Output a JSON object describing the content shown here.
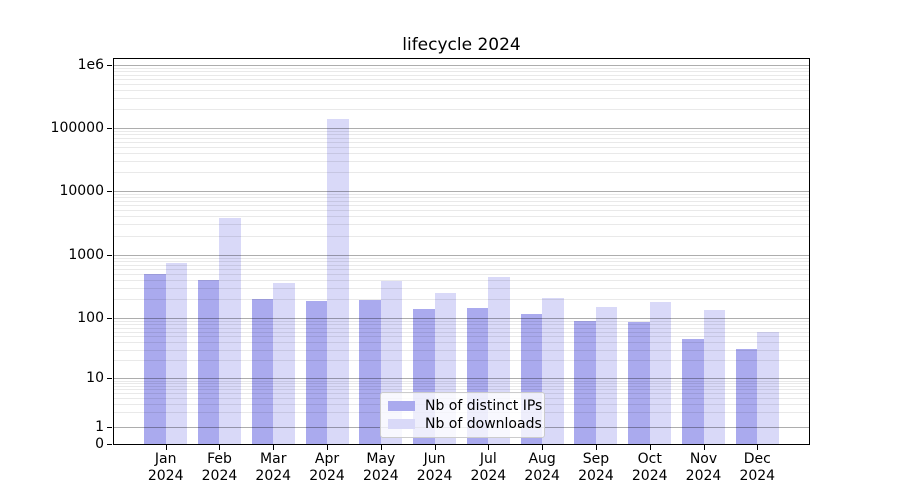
{
  "chart_data": {
    "type": "bar",
    "title": "lifecycle 2024",
    "categories": [
      "Jan",
      "Feb",
      "Mar",
      "Apr",
      "May",
      "Jun",
      "Jul",
      "Aug",
      "Sep",
      "Oct",
      "Nov",
      "Dec"
    ],
    "year_label": "2024",
    "series": [
      {
        "name": "Nb of distinct IPs",
        "color": "#aaaaee",
        "values": [
          500,
          400,
          200,
          190,
          195,
          140,
          145,
          115,
          90,
          86,
          46,
          31
        ]
      },
      {
        "name": "Nb of downloads",
        "color": "#d9d9f8",
        "values": [
          750,
          3800,
          360,
          140000,
          390,
          250,
          450,
          210,
          150,
          180,
          135,
          59
        ]
      }
    ],
    "yscale": "log-with-zero",
    "ylim": [
      0,
      1300000
    ],
    "yticks": [
      {
        "value": 1000000,
        "label": "1e6"
      },
      {
        "value": 100000,
        "label": "100000"
      },
      {
        "value": 10000,
        "label": "10000"
      },
      {
        "value": 1000,
        "label": "1000"
      },
      {
        "value": 100,
        "label": "100"
      },
      {
        "value": 10,
        "label": "10"
      },
      {
        "value": 1,
        "label": "1"
      },
      {
        "value": 0,
        "label": "0"
      }
    ],
    "grid": true,
    "grid_major_color": "#b0b0b0",
    "grid_minor_color": "#ebebeb",
    "legend_position": "lower center",
    "text_color": "#000000"
  }
}
